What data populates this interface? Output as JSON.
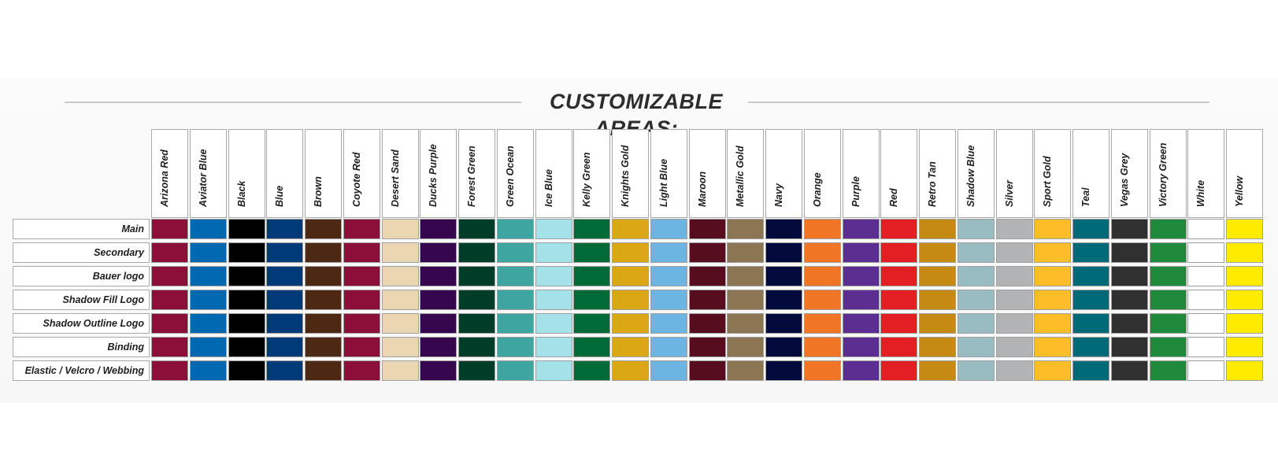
{
  "title": "CUSTOMIZABLE AREAS:",
  "areas": [
    "Main",
    "Secondary",
    "Bauer logo",
    "Shadow Fill Logo",
    "Shadow Outline Logo",
    "Binding",
    "Elastic / Velcro / Webbing"
  ],
  "colors": [
    {
      "name": "Arizona Red",
      "hex": "#8c0f3a"
    },
    {
      "name": "Aviator Blue",
      "hex": "#0068b1"
    },
    {
      "name": "Black",
      "hex": "#000000"
    },
    {
      "name": "Blue",
      "hex": "#003a78"
    },
    {
      "name": "Brown",
      "hex": "#4d2914"
    },
    {
      "name": "Coyote Red",
      "hex": "#8c0f3a"
    },
    {
      "name": "Desert Sand",
      "hex": "#ead6b0"
    },
    {
      "name": "Ducks Purple",
      "hex": "#36064f"
    },
    {
      "name": "Forest Green",
      "hex": "#003d28"
    },
    {
      "name": "Green Ocean",
      "hex": "#3fa5a1"
    },
    {
      "name": "Ice Blue",
      "hex": "#a3e2e8"
    },
    {
      "name": "Kelly Green",
      "hex": "#006b36"
    },
    {
      "name": "Knights Gold",
      "hex": "#dca715"
    },
    {
      "name": "Light Blue",
      "hex": "#6cb4e2"
    },
    {
      "name": "Maroon",
      "hex": "#560d1d"
    },
    {
      "name": "Metallic Gold",
      "hex": "#8b7552"
    },
    {
      "name": "Navy",
      "hex": "#020b3c"
    },
    {
      "name": "Orange",
      "hex": "#f07625"
    },
    {
      "name": "Purple",
      "hex": "#5d2e91"
    },
    {
      "name": "Red",
      "hex": "#e41f24"
    },
    {
      "name": "Retro Tan",
      "hex": "#c48a14"
    },
    {
      "name": "Shadow Blue",
      "hex": "#98bcc2"
    },
    {
      "name": "Silver",
      "hex": "#b2b3b5"
    },
    {
      "name": "Sport Gold",
      "hex": "#fdbd27"
    },
    {
      "name": "Teal",
      "hex": "#006a79"
    },
    {
      "name": "Vegas Grey",
      "hex": "#303030"
    },
    {
      "name": "Victory Green",
      "hex": "#1f8a3b"
    },
    {
      "name": "White",
      "hex": "#ffffff"
    },
    {
      "name": "Yellow",
      "hex": "#ffeb00"
    }
  ]
}
